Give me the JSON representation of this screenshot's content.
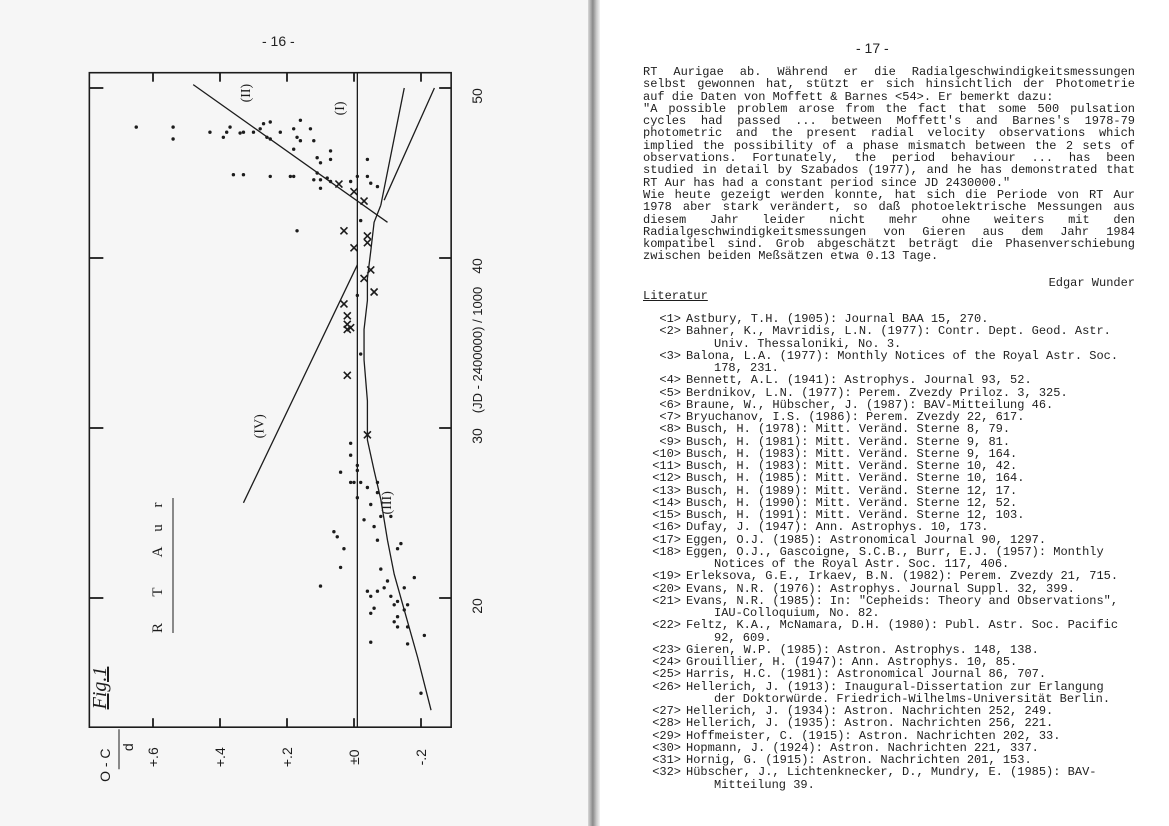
{
  "left_page": {
    "page_number": "- 16 -",
    "figure_label": "Fig.1",
    "star_label": [
      "R",
      "T",
      "A",
      "u",
      "r"
    ]
  },
  "chart_data": {
    "type": "scatter",
    "title": "",
    "xlabel": "(JD - 2400000) / 1000",
    "ylabel_top": "O - C",
    "ylabel_unit": "d",
    "orientation": "rotated 90 degrees (JD axis runs vertically, O-C horizontally)",
    "x_ticks": [
      20,
      30,
      40,
      50
    ],
    "x_tick_labels": [
      "20",
      "30",
      "40",
      "50"
    ],
    "y_ticks": [
      0.6,
      0.4,
      0.2,
      0.0,
      -0.2
    ],
    "y_tick_labels": [
      "+.6",
      "+.4",
      "+.2",
      "±0",
      "-.2"
    ],
    "x_range": [
      12.4,
      50.9
    ],
    "y_range": [
      -0.29,
      0.79
    ],
    "grid": false,
    "series": [
      {
        "marker": "dot",
        "points": [
          [
            47.7,
            0.65
          ],
          [
            47.7,
            0.54
          ],
          [
            47.0,
            0.54
          ],
          [
            47.4,
            0.43
          ],
          [
            47.1,
            0.39
          ],
          [
            47.7,
            0.37
          ],
          [
            47.4,
            0.38
          ],
          [
            47.35,
            0.34
          ],
          [
            47.4,
            0.33
          ],
          [
            47.4,
            0.3
          ],
          [
            47.6,
            0.28
          ],
          [
            47.9,
            0.27
          ],
          [
            48.0,
            0.25
          ],
          [
            47.1,
            0.26
          ],
          [
            47.0,
            0.25
          ],
          [
            47.4,
            0.22
          ],
          [
            47.6,
            0.18
          ],
          [
            48.1,
            0.16
          ],
          [
            47.1,
            0.17
          ],
          [
            46.9,
            0.16
          ],
          [
            47.6,
            0.13
          ],
          [
            46.9,
            0.12
          ],
          [
            46.4,
            0.18
          ],
          [
            46.3,
            0.07
          ],
          [
            45.8,
            0.07
          ],
          [
            45.9,
            0.11
          ],
          [
            45.6,
            0.1
          ],
          [
            45.8,
            -0.04
          ],
          [
            44.9,
            0.36
          ],
          [
            44.9,
            0.33
          ],
          [
            44.8,
            0.25
          ],
          [
            44.8,
            0.19
          ],
          [
            44.8,
            0.18
          ],
          [
            44.6,
            0.12
          ],
          [
            45.0,
            0.11
          ],
          [
            44.6,
            0.1
          ],
          [
            44.1,
            0.1
          ],
          [
            44.7,
            0.08
          ],
          [
            44.5,
            0.07
          ],
          [
            44.5,
            0.01
          ],
          [
            44.8,
            -0.01
          ],
          [
            44.8,
            -0.04
          ],
          [
            44.4,
            -0.05
          ],
          [
            44.2,
            -0.07
          ],
          [
            42.2,
            -0.02
          ],
          [
            41.6,
            0.17
          ],
          [
            37.8,
            -0.01
          ],
          [
            34.35,
            -0.02
          ],
          [
            29.1,
            0.01
          ],
          [
            28.4,
            0.01
          ],
          [
            27.8,
            -0.01
          ],
          [
            27.5,
            -0.01
          ],
          [
            27.4,
            0.04
          ],
          [
            26.8,
            0.01
          ],
          [
            26.8,
            0.0
          ],
          [
            26.8,
            -0.02
          ],
          [
            26.8,
            -0.07
          ],
          [
            26.5,
            -0.04
          ],
          [
            26.2,
            -0.07
          ],
          [
            25.9,
            -0.01
          ],
          [
            25.5,
            -0.05
          ],
          [
            24.8,
            -0.08
          ],
          [
            24.6,
            -0.03
          ],
          [
            23.9,
            0.06
          ],
          [
            23.6,
            0.05
          ],
          [
            24.2,
            -0.06
          ],
          [
            23.4,
            -0.07
          ],
          [
            24.8,
            -0.11
          ],
          [
            23.2,
            -0.14
          ],
          [
            22.9,
            -0.13
          ],
          [
            22.9,
            0.03
          ],
          [
            21.8,
            0.04
          ],
          [
            21.7,
            -0.08
          ],
          [
            21.0,
            -0.1
          ],
          [
            21.2,
            -0.18
          ],
          [
            20.7,
            0.1
          ],
          [
            20.6,
            -0.09
          ],
          [
            20.4,
            -0.04
          ],
          [
            20.4,
            -0.07
          ],
          [
            20.6,
            -0.15
          ],
          [
            20.1,
            -0.05
          ],
          [
            20.1,
            -0.11
          ],
          [
            19.8,
            -0.13
          ],
          [
            19.6,
            -0.12
          ],
          [
            19.6,
            -0.16
          ],
          [
            19.4,
            -0.06
          ],
          [
            19.1,
            -0.05
          ],
          [
            19.3,
            -0.15
          ],
          [
            18.9,
            -0.13
          ],
          [
            18.6,
            -0.12
          ],
          [
            18.3,
            -0.13
          ],
          [
            18.3,
            -0.16
          ],
          [
            17.8,
            -0.21
          ],
          [
            17.4,
            -0.05
          ],
          [
            17.3,
            -0.16
          ],
          [
            14.4,
            -0.2
          ]
        ]
      },
      {
        "marker": "cross",
        "points": [
          [
            44.35,
            0.045
          ],
          [
            43.9,
            0.0
          ],
          [
            43.35,
            -0.03
          ],
          [
            41.6,
            0.03
          ],
          [
            40.6,
            0.0
          ],
          [
            41.3,
            -0.04
          ],
          [
            40.9,
            -0.04
          ],
          [
            39.3,
            -0.05
          ],
          [
            38.8,
            -0.03
          ],
          [
            38.0,
            -0.06
          ],
          [
            37.3,
            0.03
          ],
          [
            36.6,
            0.02
          ],
          [
            36.1,
            0.02
          ],
          [
            35.8,
            0.02
          ],
          [
            35.9,
            0.01
          ],
          [
            33.1,
            0.02
          ],
          [
            29.6,
            -0.04
          ]
        ]
      }
    ],
    "lines": [
      {
        "label": "(I)",
        "points": [
          [
            50.9,
            -0.01
          ],
          [
            12.4,
            -0.01
          ]
        ],
        "label_at": [
          48.8,
          0.03
        ]
      },
      {
        "label": "(II)",
        "points": [
          [
            50.2,
            0.48
          ],
          [
            42.1,
            -0.1
          ]
        ],
        "label_at": [
          49.7,
          0.31
        ]
      },
      {
        "label": "(III)",
        "points": [
          [
            43.1,
            -0.08
          ],
          [
            42.1,
            -0.06
          ],
          [
            40.4,
            -0.05
          ],
          [
            38.8,
            -0.04
          ],
          [
            37.5,
            -0.04
          ],
          [
            35.8,
            -0.03
          ],
          [
            34.0,
            -0.03
          ],
          [
            31.6,
            -0.04
          ],
          [
            29.3,
            -0.04
          ],
          [
            27.5,
            -0.06
          ],
          [
            25.8,
            -0.08
          ],
          [
            23.4,
            -0.1
          ],
          [
            21.4,
            -0.12
          ],
          [
            19.3,
            -0.15
          ],
          [
            16.5,
            -0.19
          ],
          [
            13.4,
            -0.23
          ]
        ],
        "label_at": [
          25.6,
          -0.11
        ]
      },
      {
        "label": "(IV)",
        "points": [
          [
            39.6,
            -0.01
          ],
          [
            25.6,
            0.33
          ]
        ],
        "label_at": [
          30.1,
          0.27
        ]
      },
      {
        "label": "",
        "points": [
          [
            50.0,
            -0.15
          ],
          [
            43.1,
            -0.08
          ]
        ]
      },
      {
        "label": "",
        "points": [
          [
            50.0,
            -0.24
          ],
          [
            43.4,
            -0.09
          ]
        ]
      }
    ]
  },
  "right_page": {
    "page_number": "- 17 -",
    "paragraph_lines": [
      {
        "text": "RT Aurigae ab. Während er die Radialgeschwindigkeitsmessungen",
        "last": false
      },
      {
        "text": "selbst gewonnen hat, stützt er sich hinsichtlich der Photometrie",
        "last": false
      },
      {
        "text": "auf die Daten von Moffett & Barnes <54>. Er bemerkt dazu:",
        "last": true
      },
      {
        "text": "\"A possible problem arose from the fact that some 500 pulsation",
        "last": false
      },
      {
        "text": "cycles had passed ... between Moffett's and Barnes's 1978-79",
        "last": false
      },
      {
        "text": "photometric and the present radial velocity observations which",
        "last": false
      },
      {
        "text": "implied the possibility of a phase mismatch between the 2 sets of",
        "last": false
      },
      {
        "text": "observations. Fortunately, the period behaviour ... has been",
        "last": false
      },
      {
        "text": "studied in detail by Szabados (1977), and he has demonstrated that",
        "last": false
      },
      {
        "text": "RT Aur has had a constant period since JD 2430000.\"",
        "last": true
      },
      {
        "text": "Wie heute gezeigt werden konnte, hat sich die Periode von RT Aur",
        "last": false
      },
      {
        "text": "1978 aber stark verändert, so daß photoelektrische Messungen aus",
        "last": false
      },
      {
        "text": "diesem Jahr leider nicht mehr ohne weiters mit den",
        "last": false
      },
      {
        "text": "Radialgeschwindigkeitsmessungen von Gieren aus dem Jahr 1984",
        "last": false
      },
      {
        "text": "kompatibel sind. Grob abgeschätzt beträgt die Phasenverschiebung",
        "last": false
      },
      {
        "text": "zwischen beiden Meßsätzen etwa 0.13 Tage.",
        "last": true
      }
    ],
    "signature": "Edgar Wunder",
    "literature_heading": "Literatur",
    "references": [
      {
        "num": "<1>",
        "lines": [
          "Astbury, T.H. (1905): Journal BAA 15, 270."
        ]
      },
      {
        "num": "<2>",
        "lines": [
          "Bahner, K., Mavridis, L.N. (1977): Contr. Dept. Geod. Astr.",
          "Univ. Thessaloniki, No. 3."
        ]
      },
      {
        "num": "<3>",
        "lines": [
          "Balona, L.A. (1977): Monthly Notices of the Royal Astr. Soc.",
          "178, 231."
        ]
      },
      {
        "num": "<4>",
        "lines": [
          "Bennett, A.L. (1941): Astrophys. Journal 93, 52."
        ]
      },
      {
        "num": "<5>",
        "lines": [
          "Berdnikov, L.N. (1977): Perem. Zvezdy Priloz. 3, 325."
        ]
      },
      {
        "num": "<6>",
        "lines": [
          "Braune, W., Hübscher, J. (1987): BAV-Mitteilung 46."
        ]
      },
      {
        "num": "<7>",
        "lines": [
          "Bryuchanov, I.S. (1986): Perem. Zvezdy 22, 617."
        ]
      },
      {
        "num": "<8>",
        "lines": [
          "Busch, H. (1978): Mitt. Veränd. Sterne 8, 79."
        ]
      },
      {
        "num": "<9>",
        "lines": [
          "Busch, H. (1981): Mitt. Veränd. Sterne 9, 81."
        ]
      },
      {
        "num": "<10>",
        "lines": [
          "Busch, H. (1983): Mitt. Veränd. Sterne 9, 164."
        ]
      },
      {
        "num": "<11>",
        "lines": [
          "Busch, H. (1983): Mitt. Veränd. Sterne 10, 42."
        ]
      },
      {
        "num": "<12>",
        "lines": [
          "Busch, H. (1985): Mitt. Veränd. Sterne 10, 164."
        ]
      },
      {
        "num": "<13>",
        "lines": [
          "Busch, H. (1989): Mitt. Veränd. Sterne 12, 17."
        ]
      },
      {
        "num": "<14>",
        "lines": [
          "Busch, H. (1990): Mitt. Veränd. Sterne 12, 52."
        ]
      },
      {
        "num": "<15>",
        "lines": [
          "Busch, H. (1991): Mitt. Veränd. Sterne 12, 103."
        ]
      },
      {
        "num": "<16>",
        "lines": [
          "Dufay, J. (1947): Ann. Astrophys. 10, 173."
        ]
      },
      {
        "num": "<17>",
        "lines": [
          "Eggen, O.J. (1985): Astronomical Journal 90, 1297."
        ]
      },
      {
        "num": "<18>",
        "lines": [
          "Eggen, O.J., Gascoigne, S.C.B., Burr, E.J. (1957): Monthly",
          "Notices of the Royal Astr. Soc. 117, 406."
        ]
      },
      {
        "num": "<19>",
        "lines": [
          "Erleksova, G.E., Irkaev, B.N. (1982): Perem. Zvezdy 21, 715."
        ]
      },
      {
        "num": "<20>",
        "lines": [
          "Evans, N.R. (1976): Astrophys. Journal Suppl. 32, 399."
        ]
      },
      {
        "num": "<21>",
        "lines": [
          "Evans, N.R. (1985): In: \"Cepheids: Theory and Observations\",",
          "IAU-Colloquium, No. 82."
        ]
      },
      {
        "num": "<22>",
        "lines": [
          "Feltz, K.A., McNamara, D.H. (1980): Publ. Astr. Soc. Pacific",
          "92, 609."
        ]
      },
      {
        "num": "<23>",
        "lines": [
          "Gieren, W.P. (1985): Astron. Astrophys. 148, 138."
        ]
      },
      {
        "num": "<24>",
        "lines": [
          "Grouillier, H. (1947): Ann. Astrophys. 10, 85."
        ]
      },
      {
        "num": "<25>",
        "lines": [
          "Harris, H.C. (1981): Astronomical Journal 86, 707."
        ]
      },
      {
        "num": "<26>",
        "lines": [
          "Hellerich, J. (1913): Inaugural-Dissertation zur Erlangung",
          "der Doktorwürde. Friedrich-Wilhelms-Universität Berlin."
        ]
      },
      {
        "num": "<27>",
        "lines": [
          "Hellerich, J. (1934): Astron. Nachrichten 252, 249."
        ]
      },
      {
        "num": "<28>",
        "lines": [
          "Hellerich, J. (1935): Astron. Nachrichten 256, 221."
        ]
      },
      {
        "num": "<29>",
        "lines": [
          "Hoffmeister, C. (1915): Astron. Nachrichten 202, 33."
        ]
      },
      {
        "num": "<30>",
        "lines": [
          "Hopmann, J. (1924): Astron. Nachrichten 221, 337."
        ]
      },
      {
        "num": "<31>",
        "lines": [
          "Hornig, G. (1915): Astron. Nachrichten 201, 153."
        ]
      },
      {
        "num": "<32>",
        "lines": [
          "Hübscher, J., Lichtenknecker, D., Mundry, E. (1985): BAV-",
          "Mitteilung 39."
        ]
      }
    ]
  }
}
